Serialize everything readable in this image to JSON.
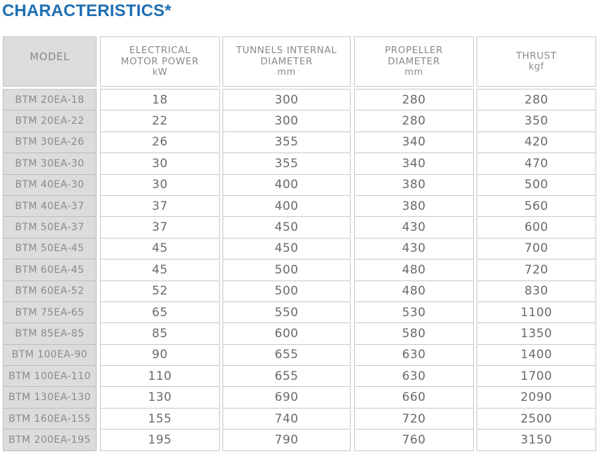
{
  "title": "CHARACTERISTICS*",
  "columns": [
    {
      "lines": [
        "MODEL"
      ],
      "unit": ""
    },
    {
      "lines": [
        "ELECTRICAL",
        "MOTOR POWER"
      ],
      "unit": "kW"
    },
    {
      "lines": [
        "TUNNELS INTERNAL",
        "DIAMETER"
      ],
      "unit": "mm"
    },
    {
      "lines": [
        "PROPELLER",
        "DIAMETER"
      ],
      "unit": "mm"
    },
    {
      "lines": [
        "THRUST"
      ],
      "unit": "kgf"
    }
  ],
  "rows": [
    [
      "BTM 20EA-18",
      "18",
      "300",
      "280",
      "280"
    ],
    [
      "BTM 20EA-22",
      "22",
      "300",
      "280",
      "350"
    ],
    [
      "BTM 30EA-26",
      "26",
      "355",
      "340",
      "420"
    ],
    [
      "BTM 30EA-30",
      "30",
      "355",
      "340",
      "470"
    ],
    [
      "BTM 40EA-30",
      "30",
      "400",
      "380",
      "500"
    ],
    [
      "BTM 40EA-37",
      "37",
      "400",
      "380",
      "560"
    ],
    [
      "BTM 50EA-37",
      "37",
      "450",
      "430",
      "600"
    ],
    [
      "BTM 50EA-45",
      "45",
      "450",
      "430",
      "700"
    ],
    [
      "BTM 60EA-45",
      "45",
      "500",
      "480",
      "720"
    ],
    [
      "BTM 60EA-52",
      "52",
      "500",
      "480",
      "830"
    ],
    [
      "BTM 75EA-65",
      "65",
      "550",
      "530",
      "1100"
    ],
    [
      "BTM 85EA-85",
      "85",
      "600",
      "580",
      "1350"
    ],
    [
      "BTM 100EA-90",
      "90",
      "655",
      "630",
      "1400"
    ],
    [
      "BTM 100EA-110",
      "110",
      "655",
      "630",
      "1700"
    ],
    [
      "BTM 130EA-130",
      "130",
      "690",
      "660",
      "2090"
    ],
    [
      "BTM 160EA-155",
      "155",
      "740",
      "720",
      "2500"
    ],
    [
      "BTM 200EA-195",
      "195",
      "790",
      "760",
      "3150"
    ]
  ]
}
